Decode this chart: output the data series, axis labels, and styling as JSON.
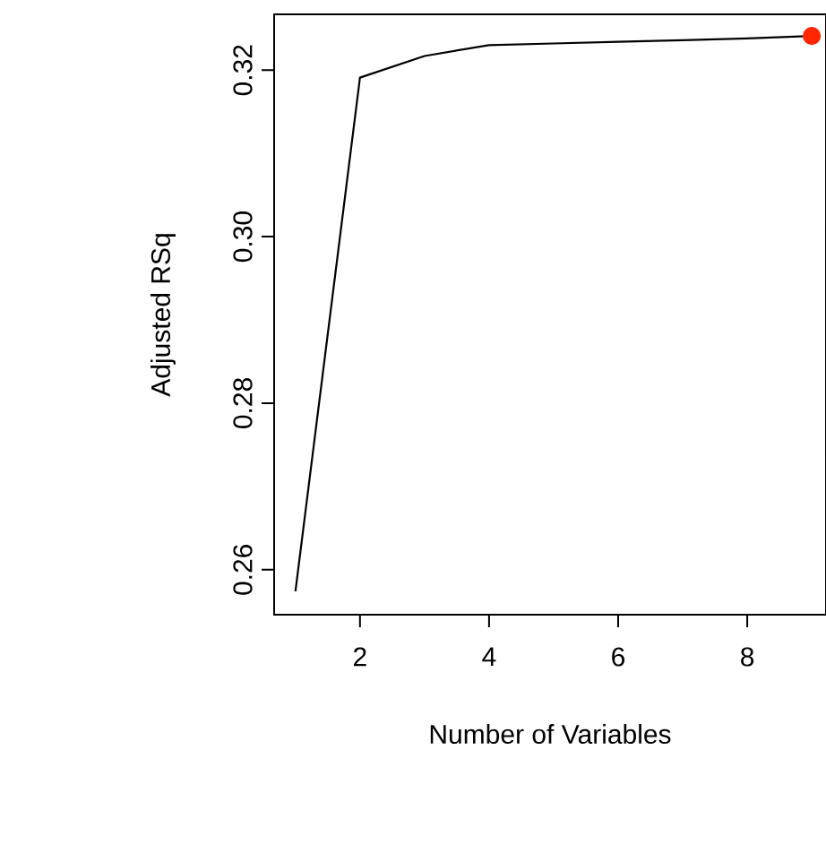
{
  "chart_data": {
    "type": "line",
    "xlabel": "Number of Variables",
    "ylabel": "Adjusted RSq",
    "x": [
      1,
      2,
      3,
      4,
      5,
      6,
      7,
      8,
      9
    ],
    "series": [
      {
        "color": "#000000",
        "marker": "none",
        "values": [
          0.2574,
          0.3191,
          0.3217,
          0.323,
          0.3232,
          0.3234,
          0.3236,
          0.3238,
          0.3241
        ]
      },
      {
        "type": "scatter",
        "x": [
          9
        ],
        "color": "#ff2600",
        "marker": "circle",
        "values": [
          0.3241
        ]
      }
    ],
    "xlim": [
      0.67,
      9.22
    ],
    "ylim": [
      0.2546,
      0.3267
    ],
    "xticks": [
      2,
      4,
      6,
      8
    ],
    "yticks": [
      0.26,
      0.28,
      {
        "value": 0.3,
        "label": "0.30"
      },
      0.32
    ],
    "grid": false
  }
}
